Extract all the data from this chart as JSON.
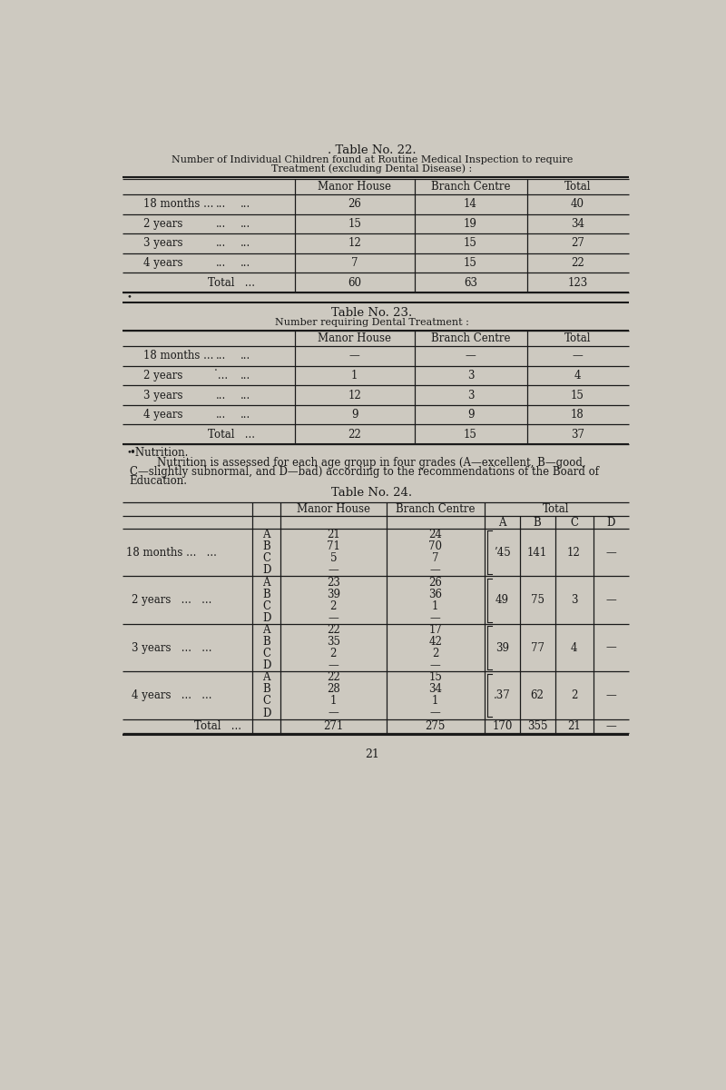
{
  "bg_color": "#cdc9c0",
  "table22_title1": ". Table No. 22.",
  "table22_title2": "Number of Individual Children found at Routine Medical Inspection to require",
  "table22_title3": "Treatment (excluding Dental Disease) :",
  "table22_rows": [
    [
      "18 months ...",
      "...",
      "...",
      "26",
      "14",
      "40"
    ],
    [
      "2 years",
      "...",
      "...",
      "15",
      "19",
      "34"
    ],
    [
      "3 years",
      "...",
      "...",
      "12",
      "15",
      "27"
    ],
    [
      "4 years",
      "...",
      "...",
      "7",
      "15",
      "22"
    ],
    [
      "Total",
      "...",
      "",
      "60",
      "63",
      "123"
    ]
  ],
  "table23_title1": "Table No. 23.",
  "table23_title2": "Number requiring Dental Treatment :",
  "table23_rows": [
    [
      "18 months ...",
      "...",
      "...",
      "—",
      "—",
      "—"
    ],
    [
      "2 years",
      "˙...",
      "...",
      "1",
      "3",
      "4"
    ],
    [
      "3 years",
      "...",
      "...",
      "12",
      "3",
      "15"
    ],
    [
      "4 years",
      "...",
      "...",
      "9",
      "9",
      "18"
    ],
    [
      "Total",
      "...",
      "",
      "22",
      "15",
      "37"
    ]
  ],
  "nutrition_bullet": "•Nutrition.",
  "nutrition_line2": "        Nutrition is assessed for each age group in four grades (A—excellent, B—good,",
  "nutrition_line3": "C—slightly subnormal, and D—bad) according to the recommendations of the Board of",
  "nutrition_line4": "Education.",
  "table24_title": "Table No. 24.",
  "table24_rows": {
    "18 months": {
      "grades": [
        "A",
        "B",
        "C",
        "D"
      ],
      "mh": [
        "21",
        "71",
        "5",
        "—"
      ],
      "bc": [
        "24",
        "70",
        "7",
        "—"
      ],
      "total": [
        "’45",
        "141",
        "12",
        "—"
      ]
    },
    "2 years": {
      "grades": [
        "A",
        "B",
        "C",
        "D"
      ],
      "mh": [
        "23",
        "39",
        "2",
        "—"
      ],
      "bc": [
        "26",
        "36",
        "1",
        "—"
      ],
      "total": [
        "49",
        "75",
        "3",
        "—"
      ]
    },
    "3 years": {
      "grades": [
        "A",
        "B",
        "C",
        "D"
      ],
      "mh": [
        "22",
        "35",
        "2",
        "—"
      ],
      "bc": [
        "17",
        "42",
        "2",
        "—"
      ],
      "total": [
        "39",
        "77",
        "4",
        "—"
      ]
    },
    "4 years": {
      "grades": [
        "A",
        "B",
        "C",
        "D"
      ],
      "mh": [
        "22",
        "28",
        "1",
        "—"
      ],
      "bc": [
        "15",
        "34",
        "1",
        "—"
      ],
      "total": [
        ".37",
        "62",
        "2",
        "—"
      ]
    }
  },
  "table24_total": {
    "mh": "271",
    "bc": "275",
    "totals": [
      "170",
      "355",
      "21",
      "—"
    ]
  },
  "page_num": "21"
}
